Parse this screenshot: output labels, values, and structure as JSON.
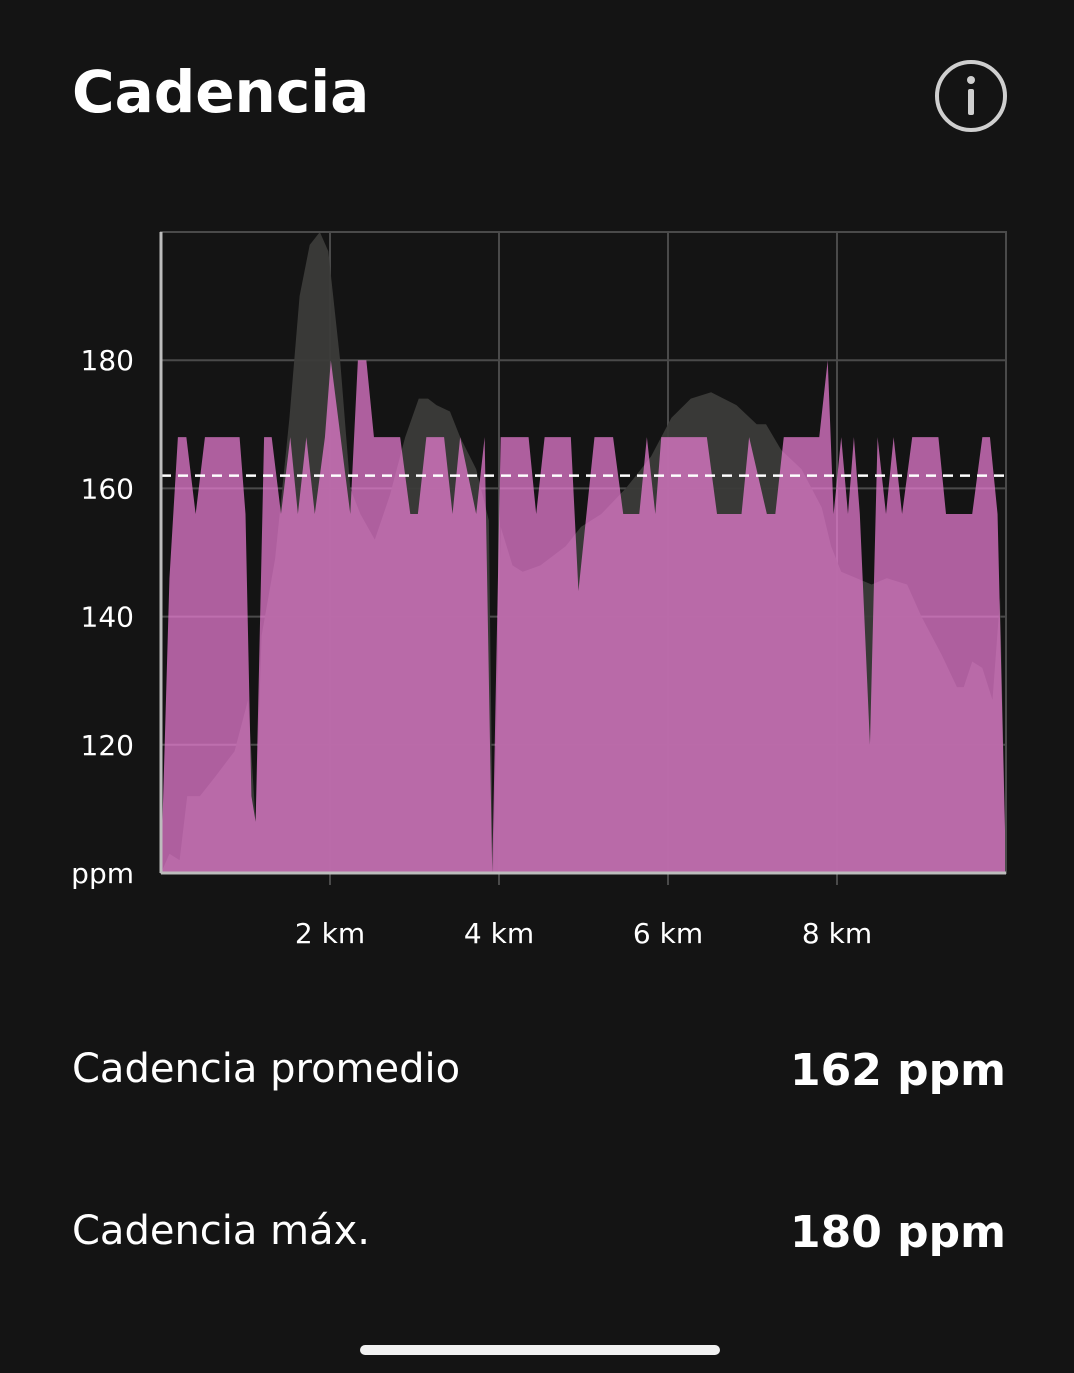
{
  "header": {
    "title": "Cadencia"
  },
  "chart_data": {
    "type": "area",
    "xlim": [
      0,
      10
    ],
    "ylim": [
      100,
      200
    ],
    "xticks": [
      {
        "value": 2,
        "label": "2 km"
      },
      {
        "value": 4,
        "label": "4 km"
      },
      {
        "value": 6,
        "label": "6 km"
      },
      {
        "value": 8,
        "label": "8 km"
      }
    ],
    "yticks": [
      {
        "value": 100,
        "label": "ppm"
      },
      120,
      140,
      160,
      180
    ],
    "grid": true,
    "average": 162,
    "series": [
      {
        "color": "#3b3b39",
        "x": [
          0,
          0.1,
          0.22,
          0.31,
          0.46,
          0.64,
          0.87,
          1.03,
          1.12,
          1.19,
          1.35,
          1.52,
          1.64,
          1.76,
          1.88,
          1.98,
          2.12,
          2.24,
          2.36,
          2.53,
          2.71,
          2.89,
          3.05,
          3.16,
          3.26,
          3.42,
          3.54,
          3.73,
          3.88,
          3.93,
          4.02,
          4.16,
          4.28,
          4.49,
          4.79,
          4.97,
          5.21,
          5.5,
          5.8,
          6.04,
          6.27,
          6.51,
          6.81,
          7.05,
          7.16,
          7.34,
          7.58,
          7.82,
          7.93,
          8.05,
          8.41,
          8.59,
          8.83,
          9.0,
          9.24,
          9.42,
          9.5,
          9.6,
          9.72,
          9.84,
          9.93,
          10
        ],
        "values": [
          100,
          103,
          102,
          112,
          112,
          115,
          119,
          127,
          108,
          137,
          149,
          171,
          190,
          198,
          200,
          197,
          180,
          160,
          156,
          152,
          159,
          168,
          174,
          174,
          173,
          172,
          168,
          163,
          155,
          100,
          154,
          148,
          147,
          148,
          151,
          154,
          156,
          160,
          165,
          171,
          174,
          175,
          173,
          170,
          170,
          166,
          163,
          157,
          151,
          147,
          145,
          146,
          145,
          140,
          134,
          129,
          129,
          133,
          132,
          127,
          143,
          100
        ]
      },
      {
        "color": "#f07fd9",
        "x": [
          0,
          0.1,
          0.2,
          0.3,
          0.41,
          0.52,
          0.93,
          1.0,
          1.07,
          1.12,
          1.22,
          1.31,
          1.42,
          1.53,
          1.62,
          1.72,
          1.82,
          1.94,
          2.01,
          2.24,
          2.33,
          2.43,
          2.52,
          2.83,
          2.95,
          3.04,
          3.14,
          3.35,
          3.45,
          3.54,
          3.73,
          3.83,
          3.92,
          4.02,
          4.35,
          4.44,
          4.54,
          4.85,
          4.94,
          5.13,
          5.35,
          5.47,
          5.66,
          5.75,
          5.85,
          5.92,
          6.46,
          6.58,
          6.87,
          6.96,
          7.17,
          7.27,
          7.37,
          7.79,
          7.89,
          7.96,
          8.05,
          8.13,
          8.2,
          8.27,
          8.39,
          8.48,
          8.58,
          8.67,
          8.77,
          8.89,
          9.2,
          9.29,
          9.6,
          9.72,
          9.81,
          9.9,
          10
        ],
        "values": [
          100,
          146,
          168,
          168,
          156,
          168,
          168,
          156,
          112,
          108,
          168,
          168,
          156,
          168,
          156,
          168,
          156,
          168,
          180,
          156,
          180,
          180,
          168,
          168,
          156,
          156,
          168,
          168,
          156,
          168,
          156,
          168,
          100,
          168,
          168,
          156,
          168,
          168,
          144,
          168,
          168,
          156,
          156,
          168,
          156,
          168,
          168,
          156,
          156,
          168,
          156,
          156,
          168,
          168,
          180,
          156,
          168,
          156,
          168,
          156,
          120,
          168,
          156,
          168,
          156,
          168,
          168,
          156,
          156,
          168,
          168,
          156,
          100
        ]
      }
    ]
  },
  "stats": [
    {
      "label": "Cadencia promedio",
      "value": "162 ppm"
    },
    {
      "label": "Cadencia máx.",
      "value": "180 ppm"
    }
  ]
}
